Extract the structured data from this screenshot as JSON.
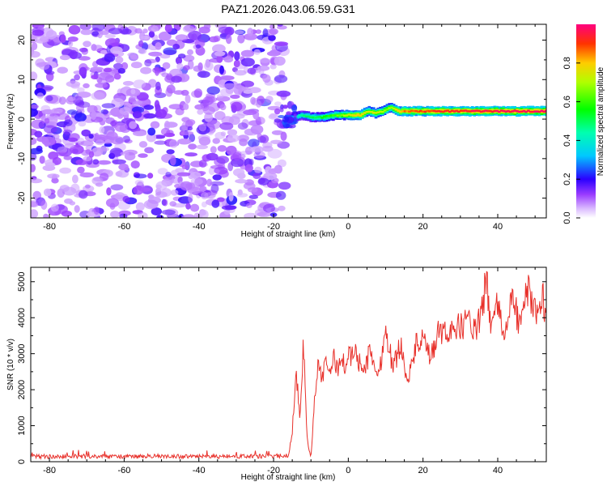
{
  "title": "PAZ1.2026.043.06.59.G31",
  "chart_data": [
    {
      "type": "heatmap",
      "id": "spectrogram",
      "xlabel": "Height of straight line (km)",
      "ylabel": "Frequency (Hz)",
      "xlim": [
        -85,
        53
      ],
      "ylim": [
        -25,
        24
      ],
      "xticks": [
        -80,
        -60,
        -40,
        -20,
        0,
        20,
        40
      ],
      "yticks": [
        -20,
        -10,
        0,
        10,
        20
      ],
      "noise_region_x": [
        -85,
        -17
      ],
      "signal_track": {
        "x": [
          -17,
          -15,
          -13,
          -10,
          -7,
          -4,
          0,
          3,
          5,
          7,
          9,
          11,
          13,
          15,
          20,
          25,
          30,
          35,
          40,
          45,
          50,
          53
        ],
        "freq": [
          0,
          0.5,
          1,
          0.5,
          0.5,
          1,
          1,
          1,
          2,
          1.5,
          2,
          3,
          2,
          2,
          2,
          2,
          2,
          2,
          2,
          2,
          2,
          2
        ],
        "amplitude": [
          0.25,
          0.35,
          0.45,
          0.5,
          0.55,
          0.6,
          0.75,
          0.8,
          0.7,
          0.75,
          0.7,
          0.65,
          0.8,
          0.85,
          0.9,
          0.92,
          0.93,
          0.95,
          0.95,
          0.96,
          0.97,
          0.97
        ]
      },
      "colorbar": {
        "label": "Normalized spectral amplitude",
        "range": [
          0,
          1
        ],
        "ticks": [
          "0.0",
          "0.2",
          "0.4",
          "0.6",
          "0.8"
        ]
      }
    },
    {
      "type": "line",
      "id": "snr",
      "xlabel": "Height of straight line (km)",
      "ylabel": "SNR (10 * v/v)",
      "xlim": [
        -85,
        53
      ],
      "ylim": [
        0,
        5400
      ],
      "xticks": [
        -80,
        -60,
        -40,
        -20,
        0,
        20,
        40
      ],
      "yticks": [
        0,
        1000,
        2000,
        3000,
        4000,
        5000
      ],
      "color": "#e8302a",
      "series": [
        {
          "name": "SNR",
          "x": [
            -85,
            -80,
            -70,
            -60,
            -50,
            -40,
            -30,
            -20,
            -16,
            -15,
            -14,
            -13,
            -12,
            -11,
            -10,
            -9,
            -8,
            -7,
            -6,
            -5,
            -4,
            -3,
            -2,
            -1,
            0,
            2,
            4,
            6,
            8,
            10,
            12,
            14,
            16,
            18,
            20,
            22,
            24,
            26,
            28,
            30,
            32,
            34,
            36,
            37,
            38,
            40,
            42,
            44,
            46,
            48,
            50,
            52,
            53
          ],
          "y": [
            150,
            140,
            150,
            140,
            150,
            140,
            145,
            150,
            180,
            800,
            2600,
            1200,
            3300,
            600,
            100,
            1800,
            2800,
            2300,
            2700,
            2500,
            2900,
            2600,
            2800,
            2700,
            2900,
            3000,
            2500,
            3100,
            2300,
            3700,
            2600,
            3300,
            2200,
            3200,
            3400,
            2800,
            3600,
            3500,
            3800,
            3700,
            4000,
            3600,
            4200,
            5300,
            3800,
            4300,
            3500,
            4600,
            3700,
            4800,
            4200,
            4600,
            4000
          ]
        }
      ]
    }
  ]
}
